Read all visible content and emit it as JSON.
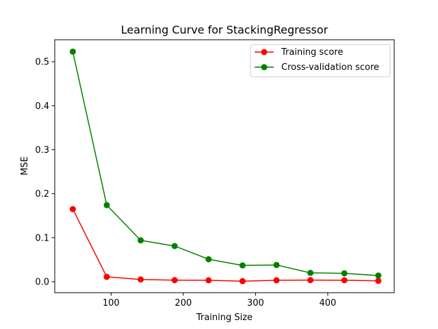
{
  "chart_data": {
    "type": "line",
    "title": "Learning Curve for StackingRegressor",
    "xlabel": "Training Size",
    "ylabel": "MSE",
    "xlim": [
      22,
      492
    ],
    "ylim": [
      -0.025,
      0.55
    ],
    "x_ticks": [
      100,
      200,
      300,
      400
    ],
    "y_ticks": [
      0.0,
      0.1,
      0.2,
      0.3,
      0.4,
      0.5
    ],
    "x_tick_labels": [
      "100",
      "200",
      "300",
      "400"
    ],
    "y_tick_labels": [
      "0.0",
      "0.1",
      "0.2",
      "0.3",
      "0.4",
      "0.5"
    ],
    "grid": false,
    "legend_position": "top-right",
    "x": [
      47,
      94,
      141,
      188,
      235,
      282,
      329,
      376,
      423,
      470
    ],
    "series": [
      {
        "name": "Training score",
        "color": "#ff0000",
        "values": [
          0.165,
          0.011,
          0.005,
          0.0035,
          0.0032,
          0.0012,
          0.0032,
          0.0036,
          0.0033,
          0.0018
        ]
      },
      {
        "name": "Cross-validation score",
        "color": "#008000",
        "values": [
          0.523,
          0.174,
          0.094,
          0.081,
          0.051,
          0.037,
          0.038,
          0.02,
          0.019,
          0.014
        ]
      }
    ]
  }
}
